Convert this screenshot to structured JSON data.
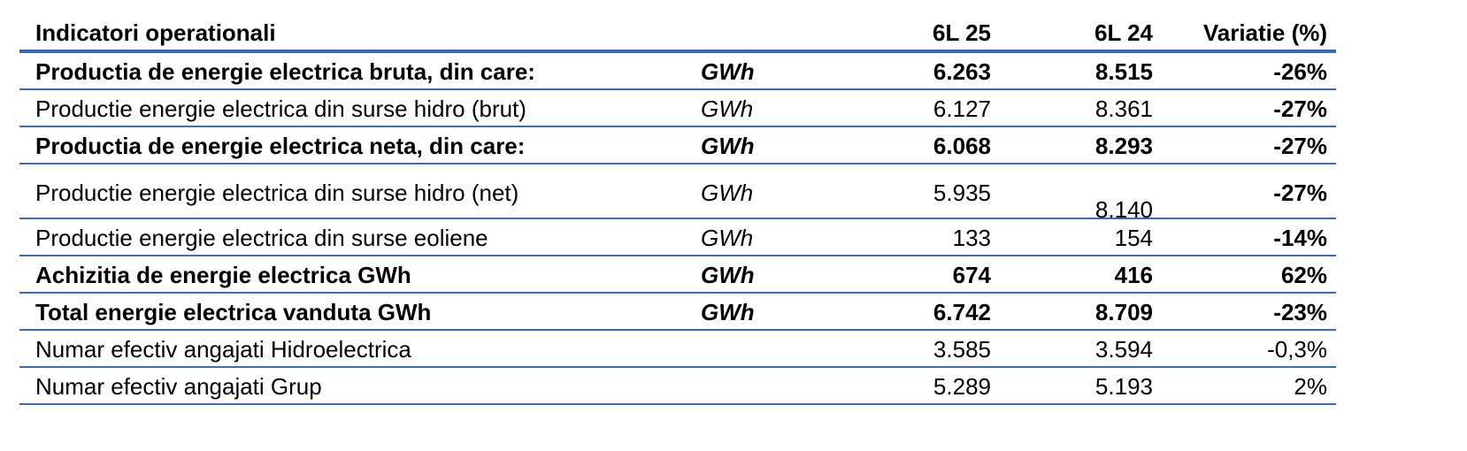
{
  "table": {
    "header": {
      "label": "Indicatori operationali",
      "col1": "6L 25",
      "col2": "6L 24",
      "col3": "Variatie (%)"
    },
    "rows": [
      {
        "label": "Productia de energie electrica bruta, din care:",
        "unit": "GWh",
        "v1": "6.263",
        "v2": "8.515",
        "var": "-26%",
        "bold": true
      },
      {
        "label": "Productie energie electrica din surse hidro (brut)",
        "unit": "GWh",
        "v1": "6.127",
        "v2": "8.361",
        "var": "-27%",
        "bold": false
      },
      {
        "label": "Productia de energie electrica neta, din care:",
        "unit": "GWh",
        "v1": "6.068",
        "v2": "8.293",
        "var": "-27%",
        "bold": true
      },
      {
        "label": "Productie energie electrica din surse hidro (net)",
        "unit": "GWh",
        "v1": "5.935",
        "v2": "8.140",
        "var": "-27%",
        "bold": false
      },
      {
        "label": "Productie energie electrica din surse eoliene",
        "unit": "GWh",
        "v1": "133",
        "v2": "154",
        "var": "-14%",
        "bold": false
      },
      {
        "label": "Achizitia de energie electrica GWh",
        "unit": "GWh",
        "v1": "674",
        "v2": "416",
        "var": "62%",
        "bold": true
      },
      {
        "label": "Total energie electrica vanduta GWh",
        "unit": "GWh",
        "v1": "6.742",
        "v2": "8.709",
        "var": "-23%",
        "bold": true
      },
      {
        "label": "Numar efectiv angajati Hidroelectrica",
        "unit": "",
        "v1": "3.585",
        "v2": "3.594",
        "var": "-0,3%",
        "bold": false
      },
      {
        "label": "Numar efectiv angajati Grup",
        "unit": "",
        "v1": "5.289",
        "v2": "5.193",
        "var": "2%",
        "bold": false
      }
    ]
  }
}
